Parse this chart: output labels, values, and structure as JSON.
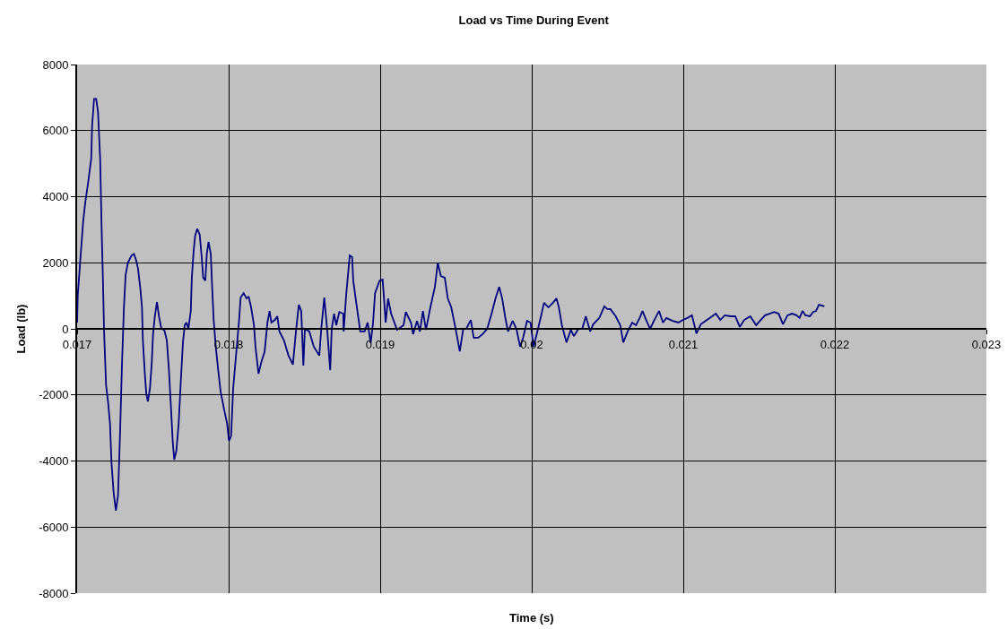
{
  "chart_data": {
    "type": "line",
    "title": "Load vs Time During Event",
    "xlabel": "Time (s)",
    "ylabel": "Load (lb)",
    "xlim": [
      0.017,
      0.023
    ],
    "xticks": [
      0.017,
      0.018,
      0.019,
      0.02,
      0.021,
      0.022,
      0.023
    ],
    "ylim": [
      -8000,
      8000
    ],
    "yticks": [
      -8000,
      -6000,
      -4000,
      -2000,
      0,
      2000,
      4000,
      6000,
      8000
    ],
    "grid": true,
    "marker": "none",
    "line_style": "solid",
    "x": [
      0.017,
      0.017004,
      0.017024,
      0.01704,
      0.017053,
      0.017073,
      0.017093,
      0.017099,
      0.017112,
      0.017126,
      0.017138,
      0.017152,
      0.017162,
      0.01717,
      0.017178,
      0.017191,
      0.017205,
      0.017217,
      0.017227,
      0.017241,
      0.017256,
      0.01727,
      0.017284,
      0.017296,
      0.017309,
      0.01732,
      0.017335,
      0.017359,
      0.017375,
      0.017389,
      0.017402,
      0.017418,
      0.017428,
      0.017434,
      0.017448,
      0.017457,
      0.017467,
      0.017481,
      0.017493,
      0.017501,
      0.017513,
      0.017527,
      0.01754,
      0.017556,
      0.017575,
      0.017592,
      0.017606,
      0.01762,
      0.017631,
      0.017641,
      0.017655,
      0.01767,
      0.017685,
      0.017698,
      0.01771,
      0.017722,
      0.017734,
      0.01775,
      0.017757,
      0.017769,
      0.017779,
      0.017793,
      0.017809,
      0.017822,
      0.017832,
      0.017846,
      0.017856,
      0.017867,
      0.017882,
      0.017891,
      0.017901,
      0.017915,
      0.017931,
      0.017947,
      0.01797,
      0.01799,
      0.018002,
      0.018016,
      0.01803,
      0.018069,
      0.018079,
      0.018099,
      0.018118,
      0.018132,
      0.018148,
      0.018167,
      0.018177,
      0.018197,
      0.018217,
      0.018237,
      0.018256,
      0.01827,
      0.018282,
      0.018305,
      0.018321,
      0.018335,
      0.018365,
      0.018395,
      0.018424,
      0.018444,
      0.018463,
      0.018479,
      0.018493,
      0.018503,
      0.018532,
      0.018562,
      0.018598,
      0.018611,
      0.018631,
      0.018651,
      0.01867,
      0.01868,
      0.018696,
      0.01871,
      0.01873,
      0.018756,
      0.018759,
      0.018775,
      0.018799,
      0.018815,
      0.018822,
      0.018838,
      0.018858,
      0.018868,
      0.018897,
      0.018917,
      0.018937,
      0.018953,
      0.018966,
      0.018996,
      0.019016,
      0.019027,
      0.019036,
      0.019052,
      0.019072,
      0.019111,
      0.019154,
      0.019169,
      0.019203,
      0.019217,
      0.019243,
      0.019262,
      0.019282,
      0.019302,
      0.019331,
      0.019361,
      0.01938,
      0.0194,
      0.019426,
      0.019446,
      0.019469,
      0.019499,
      0.019525,
      0.019548,
      0.019568,
      0.019598,
      0.019617,
      0.019647,
      0.019676,
      0.019706,
      0.019735,
      0.019761,
      0.019785,
      0.019805,
      0.019828,
      0.019844,
      0.019874,
      0.019899,
      0.019923,
      0.019943,
      0.019969,
      0.019992,
      0.020012,
      0.020037,
      0.020061,
      0.020081,
      0.02011,
      0.02014,
      0.020163,
      0.020179,
      0.020199,
      0.020229,
      0.020258,
      0.020278,
      0.020308,
      0.020333,
      0.020357,
      0.020386,
      0.020406,
      0.020446,
      0.020479,
      0.020499,
      0.020519,
      0.020554,
      0.020584,
      0.020604,
      0.020633,
      0.020663,
      0.020688,
      0.020712,
      0.020731,
      0.020755,
      0.020781,
      0.020806,
      0.02084,
      0.020866,
      0.020889,
      0.020929,
      0.020968,
      0.020998,
      0.021027,
      0.021057,
      0.021087,
      0.021116,
      0.021146,
      0.021176,
      0.021215,
      0.021244,
      0.021274,
      0.021314,
      0.021343,
      0.021373,
      0.021402,
      0.021442,
      0.021481,
      0.021511,
      0.02154,
      0.02157,
      0.021599,
      0.021629,
      0.021658,
      0.021688,
      0.021718,
      0.021747,
      0.021767,
      0.021787,
      0.021806,
      0.021836,
      0.021856,
      0.021876,
      0.021895,
      0.021931
    ],
    "series": [
      {
        "color": "#000080",
        "values": [
          190,
          1000,
          2270,
          3250,
          3800,
          4440,
          5150,
          6150,
          6960,
          6960,
          6560,
          5150,
          2980,
          1550,
          -80,
          -1700,
          -2250,
          -2870,
          -4060,
          -4960,
          -5500,
          -5040,
          -3060,
          -1080,
          650,
          1630,
          2000,
          2220,
          2270,
          2080,
          1820,
          1190,
          650,
          -350,
          -1440,
          -1980,
          -2200,
          -1790,
          -980,
          -160,
          380,
          810,
          380,
          0,
          -30,
          -350,
          -1250,
          -2440,
          -3420,
          -3960,
          -3690,
          -2870,
          -1520,
          -430,
          110,
          190,
          0,
          540,
          1550,
          2360,
          2820,
          3030,
          2850,
          2170,
          1550,
          1460,
          2270,
          2630,
          2270,
          1270,
          270,
          -540,
          -1250,
          -1900,
          -2440,
          -2870,
          -3390,
          -3250,
          -1790,
          270,
          950,
          1080,
          920,
          980,
          650,
          110,
          -540,
          -1360,
          -980,
          -700,
          190,
          540,
          190,
          270,
          380,
          -80,
          -350,
          -810,
          -1080,
          -80,
          730,
          540,
          -1110,
          0,
          -80,
          -540,
          -810,
          0,
          950,
          -80,
          -1250,
          0,
          460,
          110,
          510,
          460,
          -80,
          1000,
          2220,
          2170,
          1460,
          920,
          270,
          -80,
          -80,
          190,
          -430,
          190,
          1080,
          1460,
          1490,
          810,
          190,
          920,
          460,
          -30,
          110,
          510,
          190,
          -160,
          240,
          -80,
          540,
          -30,
          650,
          1270,
          2000,
          1600,
          1550,
          920,
          650,
          -30,
          -680,
          0,
          0,
          270,
          -270,
          -270,
          -160,
          0,
          460,
          920,
          1270,
          920,
          270,
          -80,
          240,
          0,
          -540,
          -270,
          240,
          190,
          -540,
          -80,
          380,
          790,
          650,
          790,
          920,
          650,
          110,
          -410,
          -30,
          -220,
          0,
          0,
          380,
          -80,
          140,
          330,
          680,
          600,
          600,
          380,
          110,
          -410,
          -80,
          190,
          110,
          330,
          540,
          270,
          0,
          240,
          540,
          190,
          330,
          240,
          190,
          270,
          330,
          410,
          -140,
          140,
          240,
          330,
          460,
          270,
          410,
          380,
          380,
          60,
          270,
          380,
          110,
          270,
          410,
          460,
          510,
          460,
          140,
          410,
          460,
          410,
          330,
          540,
          410,
          380,
          510,
          540,
          730,
          680
        ]
      }
    ]
  }
}
